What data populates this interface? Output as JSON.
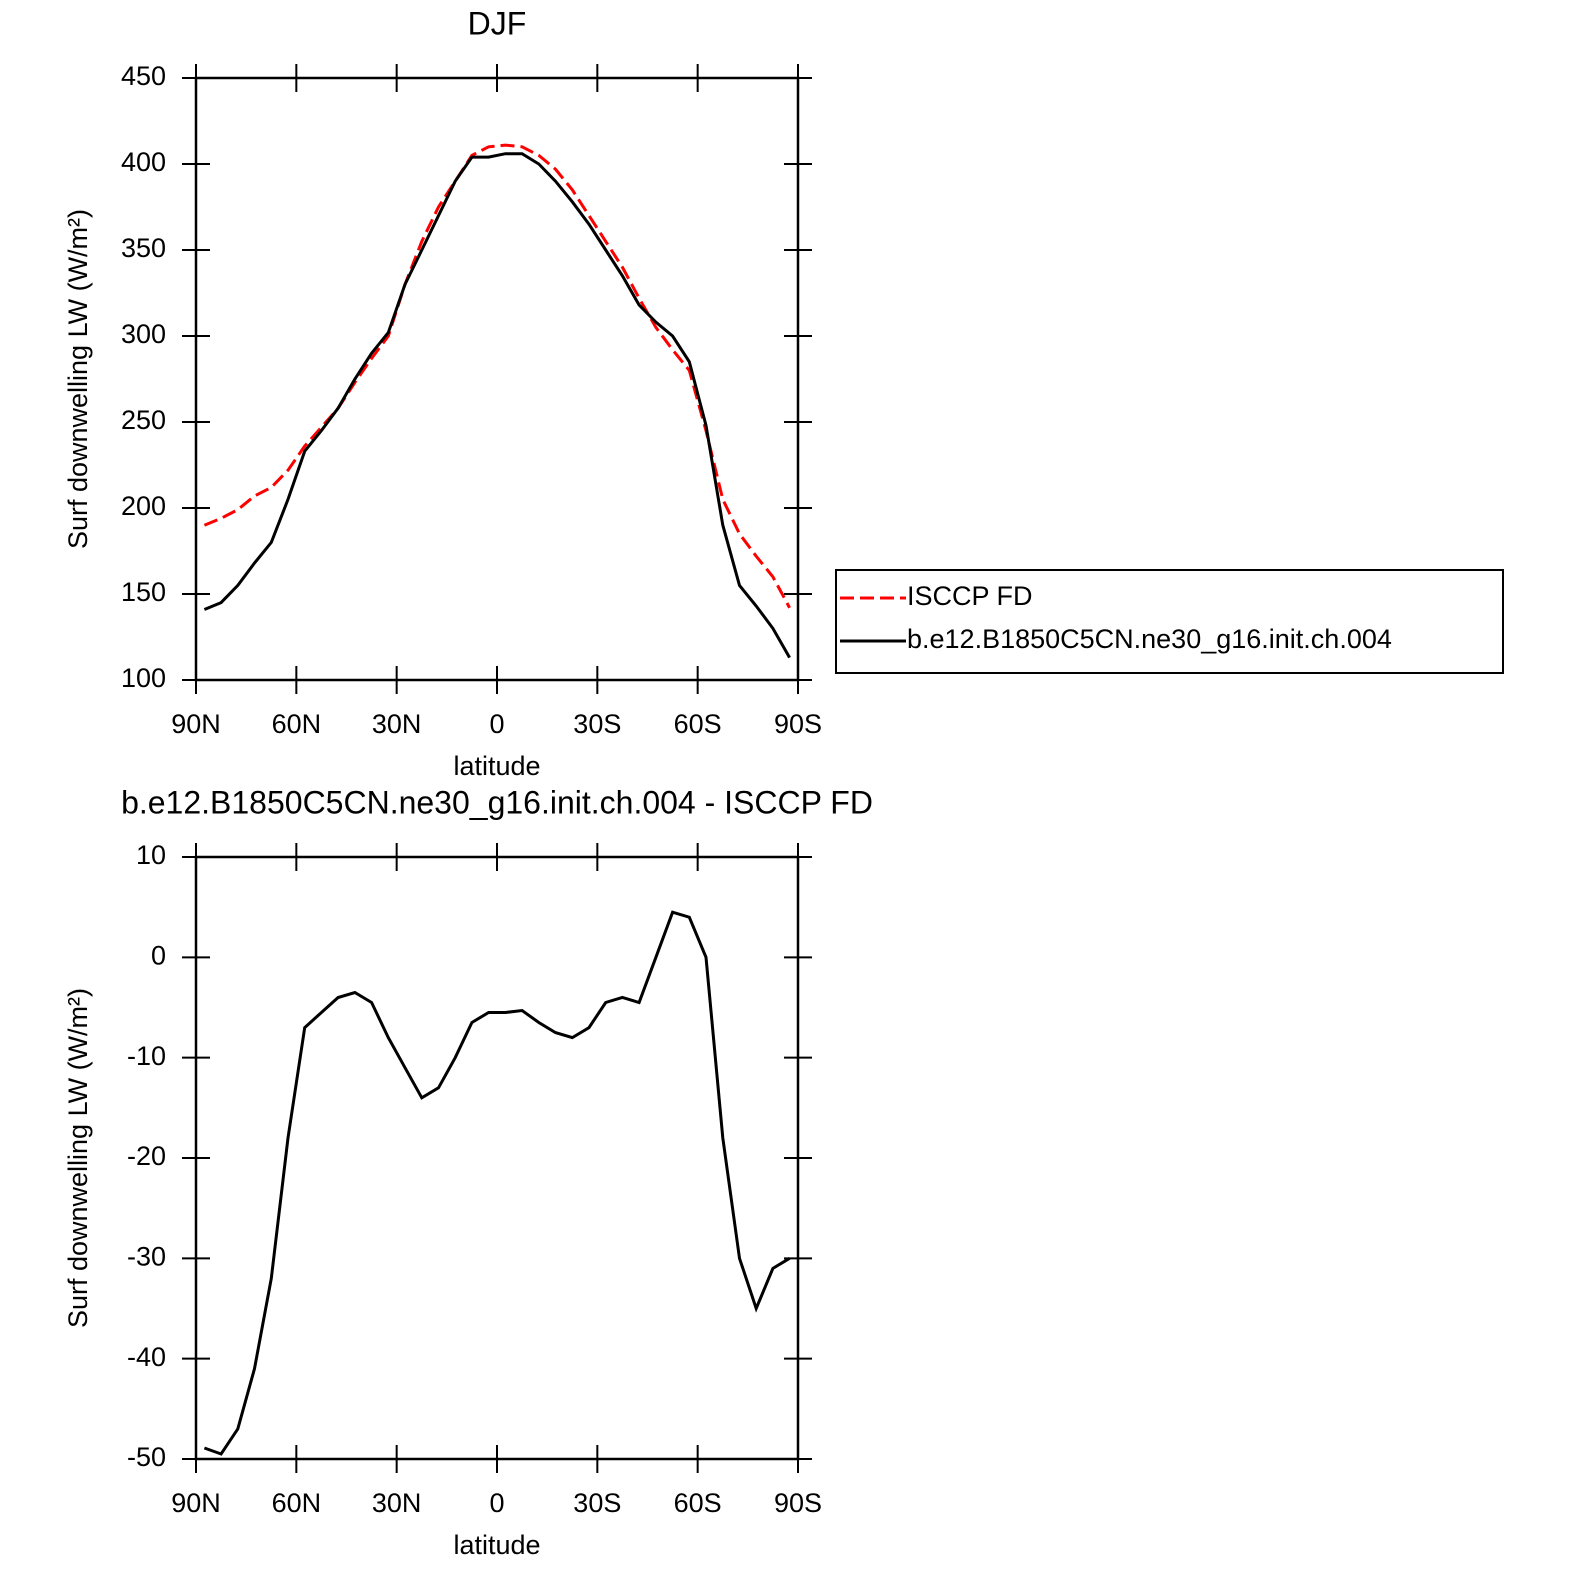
{
  "chart_data": [
    {
      "type": "line",
      "title": "DJF",
      "xlabel": "latitude",
      "ylabel": "Surf downwelling LW (W/m²)",
      "x": [
        87.5,
        82.5,
        77.5,
        72.5,
        67.5,
        62.5,
        57.5,
        52.5,
        47.5,
        42.5,
        37.5,
        32.5,
        27.5,
        22.5,
        17.5,
        12.5,
        7.5,
        2.5,
        -2.5,
        -7.5,
        -12.5,
        -17.5,
        -22.5,
        -27.5,
        -32.5,
        -37.5,
        -42.5,
        -47.5,
        -52.5,
        -57.5,
        -62.5,
        -67.5,
        -72.5,
        -77.5,
        -82.5,
        -87.5
      ],
      "series": [
        {
          "name": "ISCCP FD",
          "color": "#ff0000",
          "linestyle": "dashed",
          "values": [
            190,
            194,
            199,
            207,
            212,
            222,
            236,
            247,
            258,
            273,
            287,
            300,
            330,
            355,
            375,
            390,
            405,
            410,
            411,
            410,
            405,
            397,
            385,
            370,
            355,
            340,
            322,
            305,
            292,
            280,
            245,
            205,
            185,
            172,
            160,
            142
          ]
        },
        {
          "name": "b.e12.B1850C5CN.ne30_g16.init.ch.004",
          "color": "#000000",
          "linestyle": "solid",
          "values": [
            141,
            145,
            155,
            168,
            180,
            205,
            233,
            245,
            258,
            275,
            290,
            302,
            330,
            350,
            370,
            390,
            404,
            404,
            406,
            406,
            400,
            390,
            378,
            365,
            350,
            335,
            318,
            308,
            300,
            285,
            248,
            190,
            155,
            143,
            130,
            113
          ]
        }
      ],
      "xlim": [
        90,
        -90
      ],
      "xticks": [
        {
          "value": 90,
          "label": "90N"
        },
        {
          "value": 60,
          "label": "60N"
        },
        {
          "value": 30,
          "label": "30N"
        },
        0,
        {
          "value": -30,
          "label": "30S"
        },
        {
          "value": -60,
          "label": "60S"
        },
        {
          "value": -90,
          "label": "90S"
        }
      ],
      "ylim": [
        100,
        450
      ],
      "yticks": [
        100,
        150,
        200,
        250,
        300,
        350,
        400,
        450
      ],
      "legend": "right"
    },
    {
      "type": "line",
      "title": "b.e12.B1850C5CN.ne30_g16.init.ch.004 - ISCCP FD",
      "xlabel": "latitude",
      "ylabel": "Surf downwelling LW (W/m²)",
      "x": [
        87.5,
        82.5,
        77.5,
        72.5,
        67.5,
        62.5,
        57.5,
        52.5,
        47.5,
        42.5,
        37.5,
        32.5,
        27.5,
        22.5,
        17.5,
        12.5,
        7.5,
        2.5,
        -2.5,
        -7.5,
        -12.5,
        -17.5,
        -22.5,
        -27.5,
        -32.5,
        -37.5,
        -42.5,
        -47.5,
        -52.5,
        -57.5,
        -62.5,
        -67.5,
        -72.5,
        -77.5,
        -82.5,
        -87.5
      ],
      "series": [
        {
          "color": "#000000",
          "linestyle": "solid",
          "values": [
            -48.9,
            -49.5,
            -47,
            -41,
            -32,
            -18,
            -7,
            -5.5,
            -4,
            -3.5,
            -4.5,
            -8,
            -11,
            -14,
            -13,
            -10,
            -6.5,
            -5.5,
            -5.5,
            -5.3,
            -6.5,
            -7.5,
            -8,
            -7,
            -4.5,
            -4,
            -4.5,
            0,
            4.5,
            4,
            0,
            -18,
            -30,
            -35,
            -31,
            -30
          ]
        }
      ],
      "xlim": [
        90,
        -90
      ],
      "xticks": [
        {
          "value": 90,
          "label": "90N"
        },
        {
          "value": 60,
          "label": "60N"
        },
        {
          "value": 30,
          "label": "30N"
        },
        0,
        {
          "value": -30,
          "label": "30S"
        },
        {
          "value": -60,
          "label": "60S"
        },
        {
          "value": -90,
          "label": "90S"
        }
      ],
      "ylim": [
        -50,
        10
      ],
      "yticks": [
        -50,
        -40,
        -30,
        -20,
        -10,
        0,
        10
      ]
    }
  ]
}
